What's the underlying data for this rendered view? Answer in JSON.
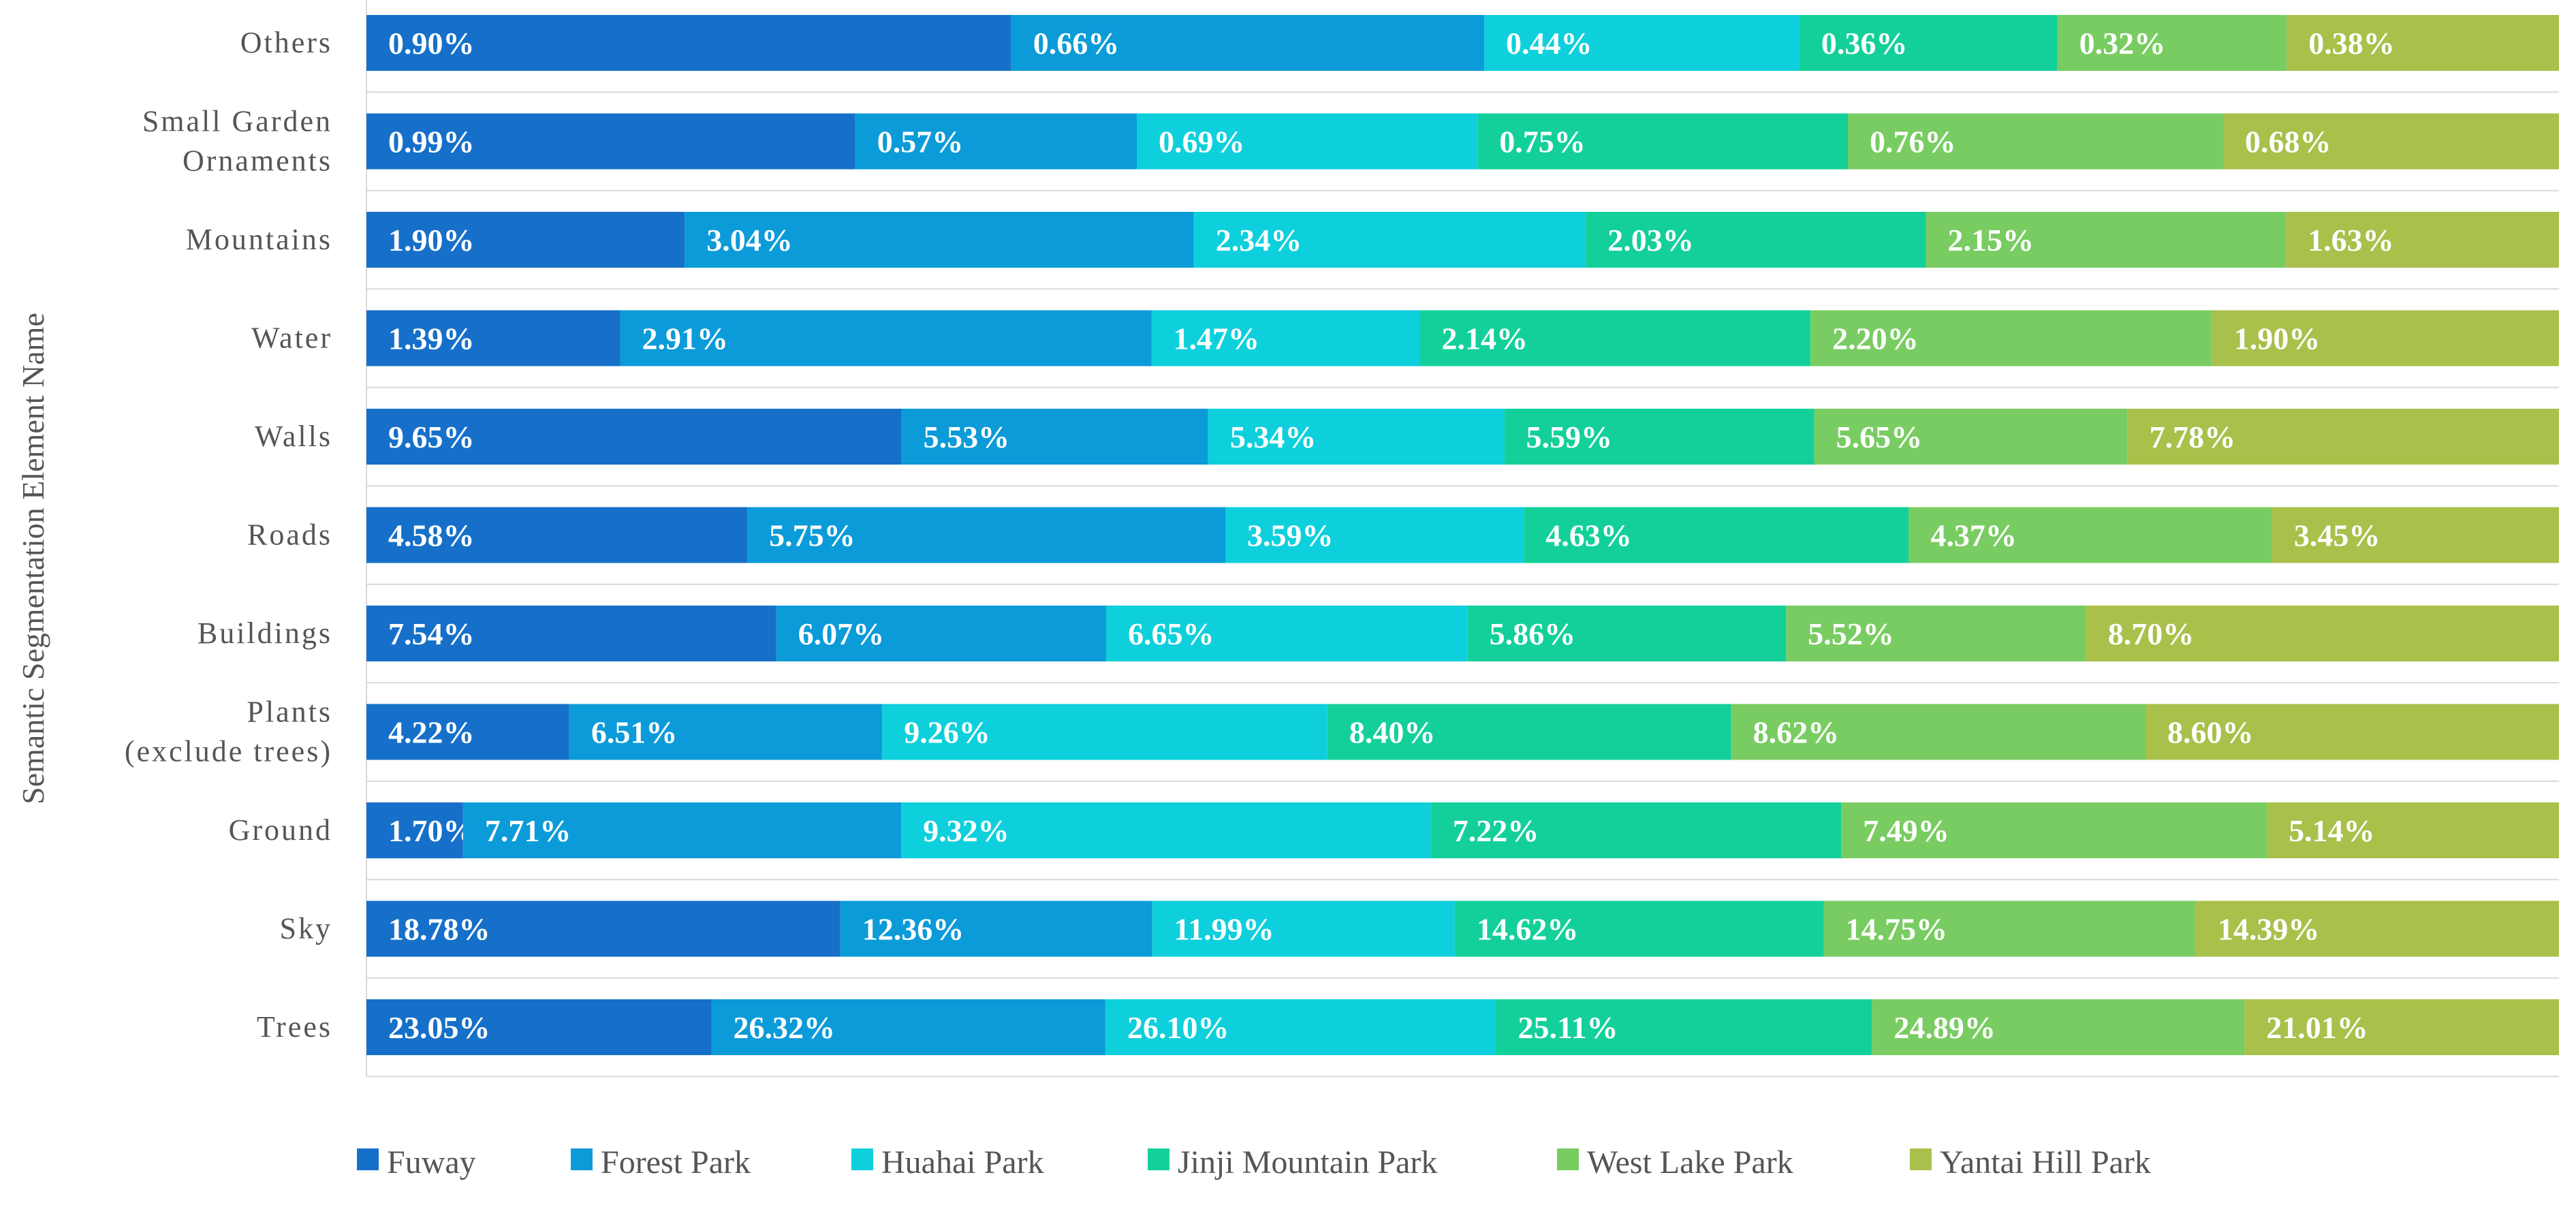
{
  "chart_data": {
    "type": "bar",
    "orientation": "horizontal",
    "stacked": "percent",
    "title": "",
    "xlabel": "",
    "ylabel": "Semantic Segmentation Element Name",
    "grid": true,
    "legend": "bottom",
    "categories": [
      [
        "Trees"
      ],
      [
        "Sky"
      ],
      [
        "Ground"
      ],
      [
        "Plants",
        "(exclude trees)"
      ],
      [
        "Buildings"
      ],
      [
        "Roads"
      ],
      [
        "Walls"
      ],
      [
        "Water"
      ],
      [
        "Mountains"
      ],
      [
        "Small Garden",
        "Ornaments"
      ],
      [
        "Others"
      ]
    ],
    "series": [
      {
        "name": "Fuway",
        "color": "#1670c9",
        "values": [
          23.05,
          18.78,
          1.7,
          4.22,
          7.54,
          4.58,
          9.65,
          1.39,
          1.9,
          0.99,
          0.9
        ],
        "labels": [
          "23.05%",
          "18.78%",
          "1.70%",
          "4.22%",
          "7.54%",
          "4.58%",
          "9.65%",
          "1.39%",
          "1.90%",
          "0.99%",
          "0.90%"
        ]
      },
      {
        "name": "Forest Park",
        "color": "#0b9bd8",
        "values": [
          26.32,
          12.36,
          7.71,
          6.51,
          6.07,
          5.75,
          5.53,
          2.91,
          3.04,
          0.57,
          0.66
        ],
        "labels": [
          "26.32%",
          "12.36%",
          "7.71%",
          "6.51%",
          "6.07%",
          "5.75%",
          "5.53%",
          "2.91%",
          "3.04%",
          "0.57%",
          "0.66%"
        ]
      },
      {
        "name": "Huahai Park",
        "color": "#0ed0dc",
        "values": [
          26.1,
          11.99,
          9.32,
          9.26,
          6.65,
          3.59,
          5.34,
          1.47,
          2.34,
          0.69,
          0.44
        ],
        "labels": [
          "26.10%",
          "11.99%",
          "9.32%",
          "9.26%",
          "6.65%",
          "3.59%",
          "5.34%",
          "1.47%",
          "2.34%",
          "0.69%",
          "0.44%"
        ]
      },
      {
        "name": "Jinji Mountain Park",
        "color": "#13d09a",
        "values": [
          25.11,
          14.62,
          7.22,
          8.4,
          5.86,
          4.63,
          5.59,
          2.14,
          2.03,
          0.75,
          0.36
        ],
        "labels": [
          "25.11%",
          "14.62%",
          "7.22%",
          "8.40%",
          "5.86%",
          "4.63%",
          "5.59%",
          "2.14%",
          "2.03%",
          "0.75%",
          "0.36%"
        ]
      },
      {
        "name": "West Lake Park",
        "color": "#79cc62",
        "values": [
          24.89,
          14.75,
          7.49,
          8.62,
          5.52,
          4.37,
          5.65,
          2.2,
          2.15,
          0.76,
          0.32
        ],
        "labels": [
          "24.89%",
          "14.75%",
          "7.49%",
          "8.62%",
          "5.52%",
          "4.37%",
          "5.65%",
          "2.20%",
          "2.15%",
          "0.76%",
          "0.32%"
        ]
      },
      {
        "name": "Yantai Hill Park",
        "color": "#a9c04b",
        "values": [
          21.01,
          14.39,
          5.14,
          8.6,
          8.7,
          3.45,
          7.78,
          1.9,
          1.63,
          0.68,
          0.38
        ],
        "labels": [
          "21.01%",
          "14.39%",
          "5.14%",
          "8.60%",
          "8.70%",
          "3.45%",
          "7.78%",
          "1.90%",
          "1.63%",
          "0.68%",
          "0.38%"
        ]
      }
    ]
  }
}
